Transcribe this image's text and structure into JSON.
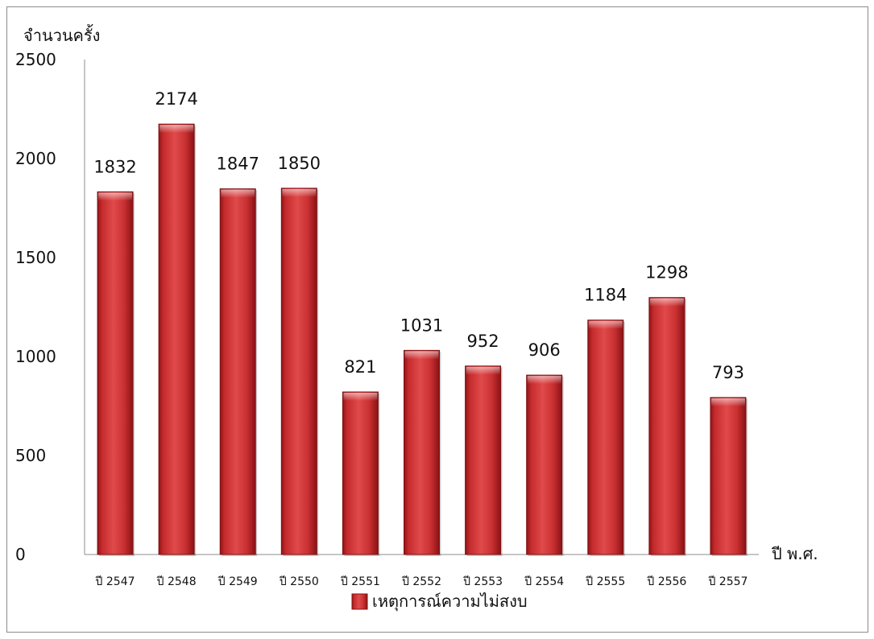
{
  "chart_data": {
    "type": "bar",
    "ylabel": "จำนวนครั้ง",
    "xlabel": "ปี พ.ศ.",
    "categories": [
      "ปี 2547",
      "ปี 2548",
      "ปี 2549",
      "ปี 2550",
      "ปี 2551",
      "ปี 2552",
      "ปี 2553",
      "ปี 2554",
      "ปี 2555",
      "ปี 2556",
      "ปี 2557"
    ],
    "series": [
      {
        "name": "เหตุการณ์ความไม่สงบ",
        "values": [
          1832,
          2174,
          1847,
          1850,
          821,
          1031,
          952,
          906,
          1184,
          1298,
          793
        ],
        "color": "#c0282a"
      }
    ],
    "ylim": [
      0,
      2500
    ],
    "yticks": [
      0,
      500,
      1000,
      1500,
      2000,
      2500
    ],
    "grid": false,
    "legend_position": "bottom",
    "data_labels": true
  }
}
